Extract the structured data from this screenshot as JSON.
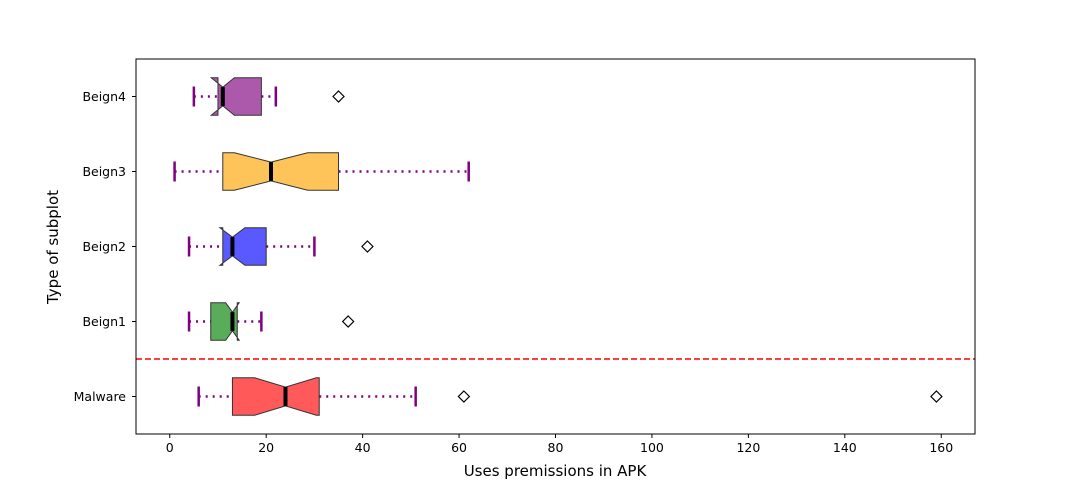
{
  "chart_data": {
    "type": "boxplot",
    "orientation": "horizontal",
    "notched": true,
    "xlabel": "Uses premissions in APK",
    "ylabel": "Type of subplot",
    "xlim": [
      -7,
      167
    ],
    "xticks": [
      0,
      20,
      40,
      60,
      80,
      100,
      120,
      140,
      160
    ],
    "categories": [
      "Malware",
      "Beign1",
      "Beign2",
      "Beign3",
      "Beign4"
    ],
    "boxes": [
      {
        "category": "Malware",
        "whisker_low": 6,
        "q1": 13,
        "median": 24,
        "q3": 31,
        "whisker_high": 51,
        "notch_low": 17.6,
        "notch_high": 30.4,
        "outliers": [
          61,
          159
        ],
        "color": "#ff0000"
      },
      {
        "category": "Beign1",
        "whisker_low": 4,
        "q1": 8.5,
        "median": 13,
        "q3": 14,
        "whisker_high": 19,
        "notch_low": 11.6,
        "notch_high": 14.4,
        "outliers": [
          37
        ],
        "color": "#008000"
      },
      {
        "category": "Beign2",
        "whisker_low": 4,
        "q1": 11,
        "median": 13,
        "q3": 20,
        "whisker_high": 30,
        "notch_low": 10.4,
        "notch_high": 15.6,
        "outliers": [
          41
        ],
        "color": "#0000ff"
      },
      {
        "category": "Beign3",
        "whisker_low": 1,
        "q1": 11,
        "median": 21,
        "q3": 35,
        "whisker_high": 62,
        "notch_low": 13.4,
        "notch_high": 28.6,
        "outliers": [],
        "color": "#ffa500"
      },
      {
        "category": "Beign4",
        "whisker_low": 5,
        "q1": 10,
        "median": 11,
        "q3": 19,
        "whisker_high": 22,
        "notch_low": 8.6,
        "notch_high": 13.4,
        "outliers": [
          35
        ],
        "color": "#800080"
      }
    ],
    "whisker_color": "#800080",
    "whisker_style": "dotted",
    "median_color": "#000000",
    "box_alpha": 0.65,
    "outlier_marker": "diamond",
    "separator": {
      "between": [
        "Malware",
        "Beign1"
      ],
      "color": "#ff0000",
      "style": "dashed"
    },
    "grid": false
  }
}
